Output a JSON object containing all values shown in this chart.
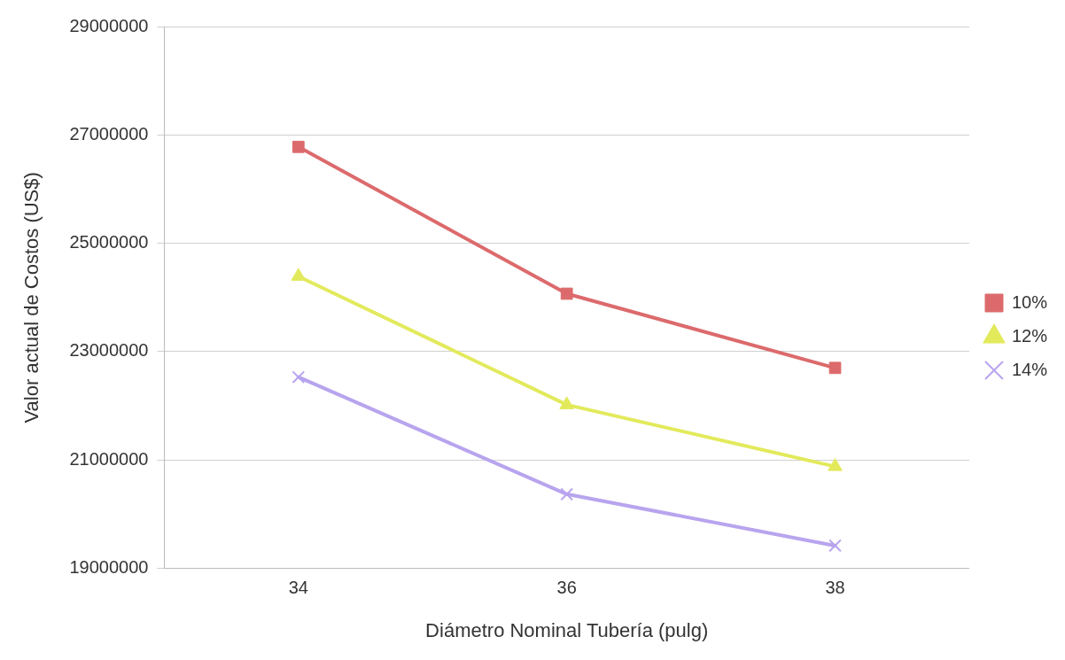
{
  "chart_data": {
    "type": "line",
    "xlabel": "Diámetro Nominal Tubería (pulg)",
    "ylabel": "Valor actual de Costos (US$)",
    "categories": [
      "34",
      "36",
      "38"
    ],
    "series": [
      {
        "name": "10%",
        "color": "#dc6a6c",
        "marker": "square",
        "values": [
          26780000,
          24070000,
          22700000
        ]
      },
      {
        "name": "12%",
        "color": "#e2ea5c",
        "marker": "triangle",
        "values": [
          24390000,
          22020000,
          20880000
        ]
      },
      {
        "name": "14%",
        "color": "#b8a4ee",
        "marker": "cross",
        "values": [
          22530000,
          20370000,
          19420000
        ]
      }
    ],
    "ylim": [
      19000000,
      29000000
    ],
    "yticks": [
      19000000,
      21000000,
      23000000,
      25000000,
      27000000,
      29000000
    ],
    "grid": "y",
    "legend": "right",
    "line_style": "solid"
  }
}
